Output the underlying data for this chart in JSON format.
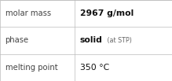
{
  "rows": [
    {
      "label": "molar mass",
      "value_parts": [
        {
          "text": "2967 g/mol",
          "bold": true,
          "small": false
        }
      ]
    },
    {
      "label": "phase",
      "value_parts": [
        {
          "text": "solid",
          "bold": true,
          "small": false
        },
        {
          "text": " (at STP)",
          "bold": false,
          "small": true
        }
      ]
    },
    {
      "label": "melting point",
      "value_parts": [
        {
          "text": "350 °C",
          "bold": false,
          "small": false
        }
      ]
    }
  ],
  "background_color": "#ffffff",
  "border_color": "#bbbbbb",
  "label_color": "#444444",
  "value_color": "#111111",
  "small_color": "#666666",
  "font_size_label": 7.2,
  "font_size_value": 7.8,
  "font_size_small": 5.8,
  "col_split": 0.435
}
